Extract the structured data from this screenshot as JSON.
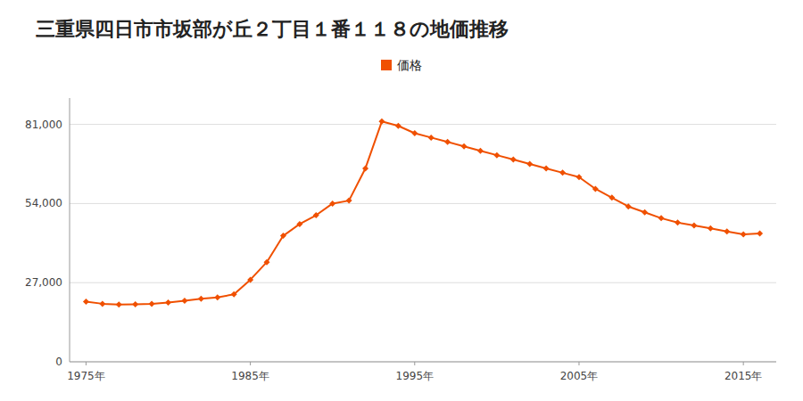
{
  "chart_data": {
    "type": "line",
    "title": "三重県四日市市坂部が丘２丁目１番１１８の地価推移",
    "x": [
      1975,
      1976,
      1977,
      1978,
      1979,
      1980,
      1981,
      1982,
      1983,
      1984,
      1985,
      1986,
      1987,
      1988,
      1989,
      1990,
      1991,
      1992,
      1993,
      1994,
      1995,
      1996,
      1997,
      1998,
      1999,
      2000,
      2001,
      2002,
      2003,
      2004,
      2005,
      2006,
      2007,
      2008,
      2009,
      2010,
      2011,
      2012,
      2013,
      2014,
      2015,
      2016
    ],
    "series": [
      {
        "name": "価格",
        "color": "#f05000",
        "marker": "diamond",
        "line_style": "solid",
        "values": [
          20500,
          19800,
          19500,
          19600,
          19800,
          20200,
          20800,
          21500,
          22000,
          23000,
          28000,
          34000,
          43000,
          47000,
          50000,
          54000,
          55000,
          66000,
          82000,
          80500,
          78000,
          76500,
          75000,
          73500,
          72000,
          70500,
          69000,
          67500,
          66000,
          64500,
          63000,
          59000,
          56000,
          53000,
          51000,
          49000,
          47500,
          46500,
          45500,
          44500,
          43500,
          43800
        ]
      }
    ],
    "xlim": [
      1974,
      2017
    ],
    "xticks": [
      {
        "value": 1975,
        "label": "1975年"
      },
      {
        "value": 1985,
        "label": "1985年"
      },
      {
        "value": 1995,
        "label": "1995年"
      },
      {
        "value": 2005,
        "label": "2005年"
      },
      {
        "value": 2015,
        "label": "2015年"
      }
    ],
    "ylim": [
      0,
      90000
    ],
    "yticks": [
      0,
      {
        "value": 27000,
        "label": "27,000"
      },
      {
        "value": 54000,
        "label": "54,000"
      },
      {
        "value": 81000,
        "label": "81,000"
      }
    ],
    "grid": "y",
    "legend": "top"
  }
}
